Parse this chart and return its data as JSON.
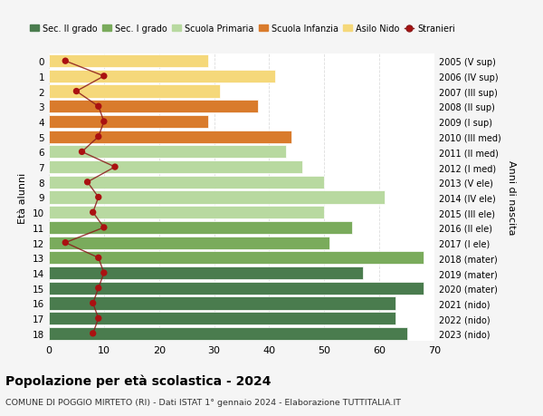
{
  "ages": [
    18,
    17,
    16,
    15,
    14,
    13,
    12,
    11,
    10,
    9,
    8,
    7,
    6,
    5,
    4,
    3,
    2,
    1,
    0
  ],
  "right_labels": [
    "2005 (V sup)",
    "2006 (IV sup)",
    "2007 (III sup)",
    "2008 (II sup)",
    "2009 (I sup)",
    "2010 (III med)",
    "2011 (II med)",
    "2012 (I med)",
    "2013 (V ele)",
    "2014 (IV ele)",
    "2015 (III ele)",
    "2016 (II ele)",
    "2017 (I ele)",
    "2018 (mater)",
    "2019 (mater)",
    "2020 (mater)",
    "2021 (nido)",
    "2022 (nido)",
    "2023 (nido)"
  ],
  "bar_values": [
    65,
    63,
    63,
    68,
    57,
    68,
    51,
    55,
    50,
    61,
    50,
    46,
    43,
    44,
    29,
    38,
    31,
    41,
    29
  ],
  "stranieri_values": [
    8,
    9,
    8,
    9,
    10,
    9,
    3,
    10,
    8,
    9,
    7,
    12,
    6,
    9,
    10,
    9,
    5,
    10,
    3
  ],
  "bar_colors": [
    "#4a7c4e",
    "#4a7c4e",
    "#4a7c4e",
    "#4a7c4e",
    "#4a7c4e",
    "#7aab5c",
    "#7aab5c",
    "#7aab5c",
    "#b8d9a0",
    "#b8d9a0",
    "#b8d9a0",
    "#b8d9a0",
    "#b8d9a0",
    "#d97b2c",
    "#d97b2c",
    "#d97b2c",
    "#f5d87a",
    "#f5d87a",
    "#f5d87a"
  ],
  "legend_labels": [
    "Sec. II grado",
    "Sec. I grado",
    "Scuola Primaria",
    "Scuola Infanzia",
    "Asilo Nido",
    "Stranieri"
  ],
  "legend_colors": [
    "#4a7c4e",
    "#7aab5c",
    "#b8d9a0",
    "#d97b2c",
    "#f5d87a",
    "#a00000"
  ],
  "ylabel": "Età alunni",
  "right_ylabel": "Anni di nascita",
  "title": "Popolazione per età scolastica - 2024",
  "subtitle": "COMUNE DI POGGIO MIRTETO (RI) - Dati ISTAT 1° gennaio 2024 - Elaborazione TUTTITALIA.IT",
  "xlim": [
    0,
    70
  ],
  "xticks": [
    0,
    10,
    20,
    30,
    40,
    50,
    60,
    70
  ],
  "background_color": "#f5f5f5",
  "bar_background": "#ffffff",
  "stranieri_line_color": "#8b1a1a",
  "stranieri_dot_color": "#aa1111",
  "grid_color": "#dddddd"
}
